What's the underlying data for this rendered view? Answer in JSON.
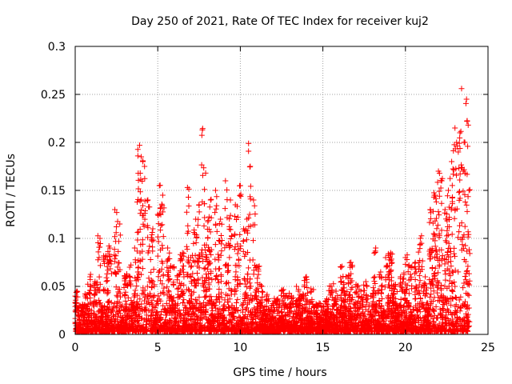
{
  "chart_data": {
    "type": "scatter",
    "title": "Day 250 of 2021, Rate Of TEC Index for receiver kuj2",
    "xlabel": "GPS time / hours",
    "ylabel": "ROTI / TECUs",
    "xlim": [
      0,
      25
    ],
    "ylim": [
      0,
      0.3
    ],
    "x_ticks": [
      "0",
      "5",
      "10",
      "15",
      "20",
      "25"
    ],
    "y_ticks": [
      "0",
      "0.05",
      "0.1",
      "0.15",
      "0.2",
      "0.25",
      "0.3"
    ],
    "grid": true,
    "marker": "plus",
    "color": "#ff0000",
    "series": [
      {
        "name": "ROTI",
        "x": [
          0.1,
          0.3,
          0.6,
          0.9,
          1.2,
          1.5,
          1.8,
          2.1,
          2.4,
          2.7,
          3.0,
          3.3,
          3.6,
          3.9,
          4.0,
          4.1,
          4.2,
          4.4,
          4.7,
          5.0,
          5.1,
          5.3,
          5.6,
          5.9,
          6.2,
          6.5,
          6.8,
          7.0,
          7.3,
          7.5,
          7.7,
          7.9,
          8.2,
          8.5,
          8.8,
          9.1,
          9.4,
          9.7,
          10.0,
          10.2,
          10.4,
          10.5,
          10.6,
          10.8,
          11.0,
          11.3,
          11.6,
          11.9,
          12.2,
          12.5,
          12.8,
          13.1,
          13.4,
          13.7,
          14.0,
          14.3,
          14.6,
          14.9,
          15.2,
          15.5,
          15.8,
          16.1,
          16.4,
          16.7,
          17.0,
          17.3,
          17.6,
          17.9,
          18.2,
          18.5,
          18.8,
          19.1,
          19.4,
          19.7,
          20.0,
          20.3,
          20.6,
          20.9,
          21.2,
          21.5,
          21.8,
          22.0,
          22.2,
          22.4,
          22.6,
          22.8,
          23.0,
          23.1,
          23.2,
          23.3,
          23.4,
          23.5,
          23.6,
          23.7,
          23.8,
          23.85,
          0.2,
          0.5,
          1.0,
          1.6,
          2.3,
          2.9,
          3.5,
          4.3,
          4.9,
          5.5,
          6.1,
          6.7,
          7.6,
          8.4,
          9.0,
          9.6,
          10.1,
          10.7,
          11.5,
          12.4,
          13.3,
          14.2,
          15.1,
          16.0,
          16.9,
          17.8,
          18.7,
          19.6,
          20.5,
          21.4,
          22.3,
          23.0
        ],
        "y": [
          0.045,
          0.03,
          0.04,
          0.06,
          0.055,
          0.1,
          0.08,
          0.09,
          0.13,
          0.115,
          0.06,
          0.07,
          0.09,
          0.197,
          0.185,
          0.18,
          0.175,
          0.14,
          0.11,
          0.125,
          0.155,
          0.145,
          0.09,
          0.07,
          0.06,
          0.085,
          0.153,
          0.08,
          0.12,
          0.135,
          0.213,
          0.168,
          0.14,
          0.15,
          0.12,
          0.16,
          0.14,
          0.135,
          0.155,
          0.11,
          0.12,
          0.199,
          0.175,
          0.14,
          0.07,
          0.05,
          0.04,
          0.03,
          0.035,
          0.045,
          0.04,
          0.04,
          0.05,
          0.04,
          0.06,
          0.045,
          0.03,
          0.025,
          0.035,
          0.05,
          0.045,
          0.07,
          0.06,
          0.075,
          0.05,
          0.045,
          0.055,
          0.04,
          0.09,
          0.065,
          0.08,
          0.085,
          0.05,
          0.06,
          0.08,
          0.07,
          0.075,
          0.1,
          0.06,
          0.13,
          0.145,
          0.17,
          0.16,
          0.13,
          0.15,
          0.18,
          0.215,
          0.2,
          0.19,
          0.21,
          0.256,
          0.17,
          0.2,
          0.245,
          0.218,
          0.15,
          0.02,
          0.015,
          0.025,
          0.03,
          0.02,
          0.018,
          0.022,
          0.025,
          0.015,
          0.02,
          0.03,
          0.025,
          0.02,
          0.03,
          0.025,
          0.022,
          0.03,
          0.035,
          0.01,
          0.012,
          0.008,
          0.01,
          0.006,
          0.01,
          0.012,
          0.015,
          0.01,
          0.02,
          0.025,
          0.03,
          0.04,
          0.05
        ]
      }
    ]
  }
}
